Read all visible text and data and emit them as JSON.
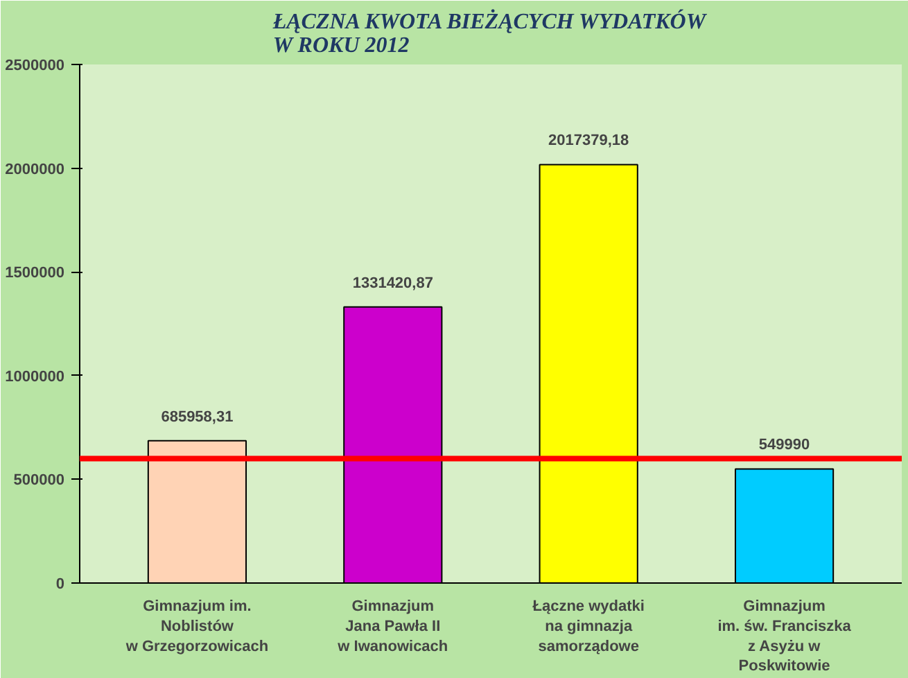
{
  "chart_data": {
    "type": "bar",
    "title": "ŁĄCZNA KWOTA BIEŻĄCYCH WYDATKÓW\nW ROKU 2012",
    "categories": [
      "Gimnazjum im.\nNoblistów\nw Grzegorzowicach",
      "Gimnazjum\nJana Pawła II\nw Iwanowicach",
      "Łączne wydatki\nna gimnazja\nsamorządowe",
      "Gimnazjum\nim. św. Franciszka\nz Asyżu w\nPoskwitowie"
    ],
    "values": [
      685958.31,
      1331420.87,
      2017379.18,
      549990
    ],
    "colors": [
      "#ffd3b5",
      "#cc00cc",
      "#ffff00",
      "#00ccff"
    ],
    "value_labels": [
      "685958,31",
      "1331420,87",
      "2017379,18",
      "549990"
    ],
    "ylim": [
      0,
      2500000
    ],
    "yticks": [
      0,
      500000,
      1000000,
      1500000,
      2000000,
      2500000
    ],
    "grid": false,
    "ref_lines": [
      {
        "axis": "y",
        "value": 600000,
        "label": null,
        "color": "#ff0000"
      }
    ]
  }
}
